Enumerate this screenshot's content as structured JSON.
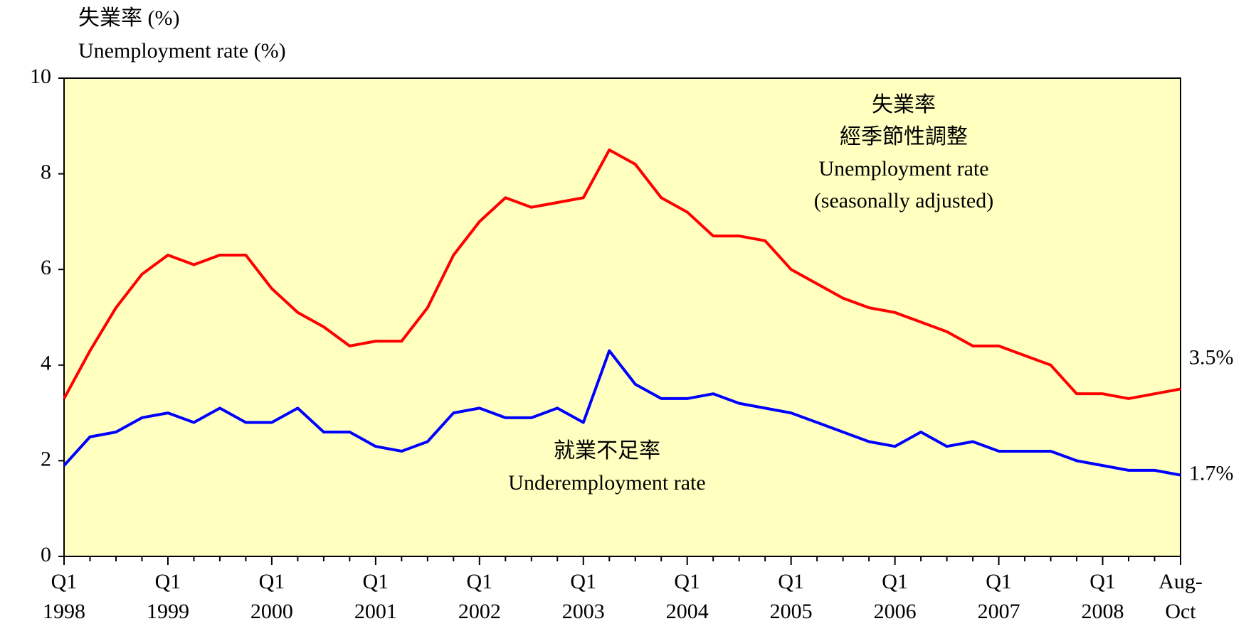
{
  "chart_data": {
    "type": "line",
    "ylabel": [
      "失業率 (%)",
      "Unemployment rate (%)"
    ],
    "categories": [
      "Q1\n1998",
      null,
      null,
      null,
      "Q1\n1999",
      null,
      null,
      null,
      "Q1\n2000",
      null,
      null,
      null,
      "Q1\n2001",
      null,
      null,
      null,
      "Q1\n2002",
      null,
      null,
      null,
      "Q1\n2003",
      null,
      null,
      null,
      "Q1\n2004",
      null,
      null,
      null,
      "Q1\n2005",
      null,
      null,
      null,
      "Q1\n2006",
      null,
      null,
      null,
      "Q1\n2007",
      null,
      null,
      null,
      "Q1\n2008",
      null,
      null,
      "Aug-\nOct"
    ],
    "series": [
      {
        "name": [
          "失業率",
          "經季節性調整",
          "Unemployment rate",
          "(seasonally adjusted)"
        ],
        "color": "#ff0000",
        "values": [
          3.3,
          4.3,
          5.2,
          5.9,
          6.3,
          6.1,
          6.3,
          6.3,
          5.6,
          5.1,
          4.8,
          4.4,
          4.5,
          4.5,
          5.2,
          6.3,
          7.0,
          7.5,
          7.3,
          7.4,
          7.5,
          8.5,
          8.2,
          7.5,
          7.2,
          6.7,
          6.7,
          6.6,
          6.0,
          5.7,
          5.4,
          5.2,
          5.1,
          4.9,
          4.7,
          4.4,
          4.4,
          4.2,
          4.0,
          3.4,
          3.4,
          3.3,
          3.4,
          3.5
        ],
        "value_labels": [
          null,
          null,
          null,
          null,
          null,
          null,
          null,
          null,
          null,
          null,
          null,
          null,
          null,
          null,
          null,
          null,
          null,
          null,
          null,
          null,
          null,
          null,
          null,
          null,
          null,
          null,
          null,
          null,
          null,
          null,
          null,
          null,
          null,
          null,
          null,
          null,
          null,
          null,
          null,
          null,
          null,
          null,
          null,
          "3.5%"
        ]
      },
      {
        "name": [
          "就業不足率",
          "Underemployment rate"
        ],
        "color": "#0000ff",
        "values": [
          1.9,
          2.5,
          2.6,
          2.9,
          3.0,
          2.8,
          3.1,
          2.8,
          2.8,
          3.1,
          2.6,
          2.6,
          2.3,
          2.2,
          2.4,
          3.0,
          3.1,
          2.9,
          2.9,
          3.1,
          2.8,
          4.3,
          3.6,
          3.3,
          3.3,
          3.4,
          3.2,
          3.1,
          3.0,
          2.8,
          2.6,
          2.4,
          2.3,
          2.6,
          2.3,
          2.4,
          2.2,
          2.2,
          2.2,
          2.0,
          1.9,
          1.8,
          1.8,
          1.7
        ],
        "value_labels": [
          null,
          null,
          null,
          null,
          null,
          null,
          null,
          null,
          null,
          null,
          null,
          null,
          null,
          null,
          null,
          null,
          null,
          null,
          null,
          null,
          null,
          null,
          null,
          null,
          null,
          null,
          null,
          null,
          null,
          null,
          null,
          null,
          null,
          null,
          null,
          null,
          null,
          null,
          null,
          null,
          null,
          null,
          null,
          "1.7%"
        ]
      }
    ],
    "ylim": [
      0,
      10
    ],
    "yticks": [
      0,
      2,
      4,
      6,
      8,
      10
    ],
    "background": "#ffffc0"
  }
}
